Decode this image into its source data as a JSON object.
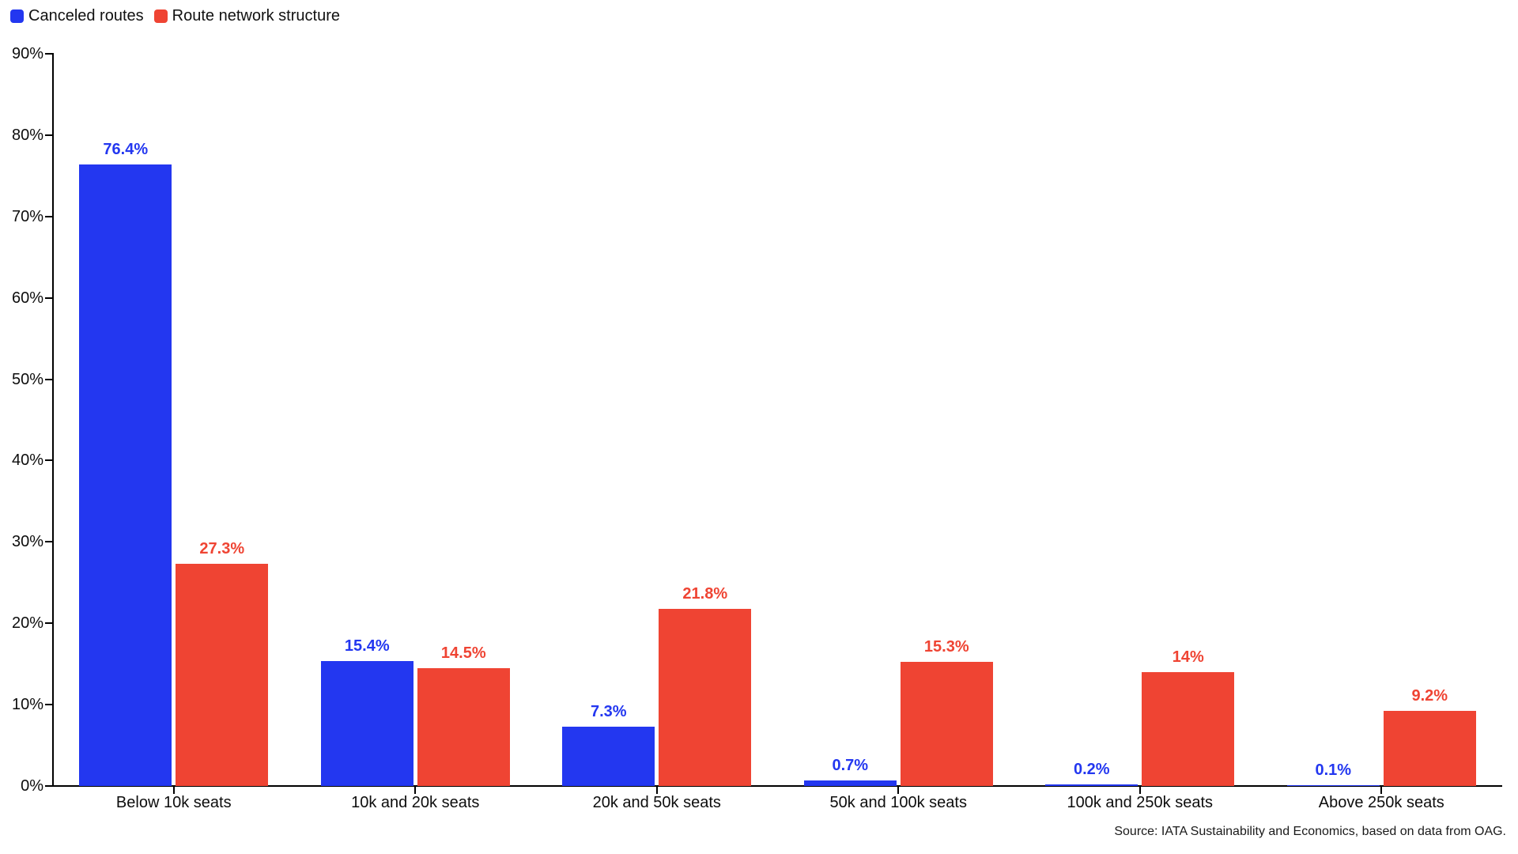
{
  "legend": {
    "items": [
      {
        "label": "Canceled routes",
        "color": "#2337f0"
      },
      {
        "label": "Route network structure",
        "color": "#ef4433"
      }
    ]
  },
  "source": "Source: IATA Sustainability and Economics, based on data from OAG.",
  "colors": {
    "axis": "#000000",
    "text": "#0d0d0d",
    "series_blue": "#2337f0",
    "series_red": "#ef4433"
  },
  "chart_data": {
    "type": "bar",
    "categories": [
      "Below 10k seats",
      "10k and 20k seats",
      "20k and 50k seats",
      "50k and 100k seats",
      "100k and 250k seats",
      "Above 250k seats"
    ],
    "series": [
      {
        "name": "Canceled routes",
        "color": "#2337f0",
        "values": [
          76.4,
          15.4,
          7.3,
          0.7,
          0.2,
          0.1
        ],
        "labels": [
          "76.4%",
          "15.4%",
          "7.3%",
          "0.7%",
          "0.2%",
          "0.1%"
        ]
      },
      {
        "name": "Route network structure",
        "color": "#ef4433",
        "values": [
          27.3,
          14.5,
          21.8,
          15.3,
          14,
          9.2
        ],
        "labels": [
          "27.3%",
          "14.5%",
          "21.8%",
          "15.3%",
          "14%",
          "9.2%"
        ]
      }
    ],
    "title": "",
    "xlabel": "",
    "ylabel": "",
    "ylim": [
      0,
      90
    ],
    "yticks": [
      "0%",
      "10%",
      "20%",
      "30%",
      "40%",
      "50%",
      "60%",
      "70%",
      "80%",
      "90%"
    ],
    "grid": false,
    "legend_position": "top-left",
    "value_labels": true
  }
}
